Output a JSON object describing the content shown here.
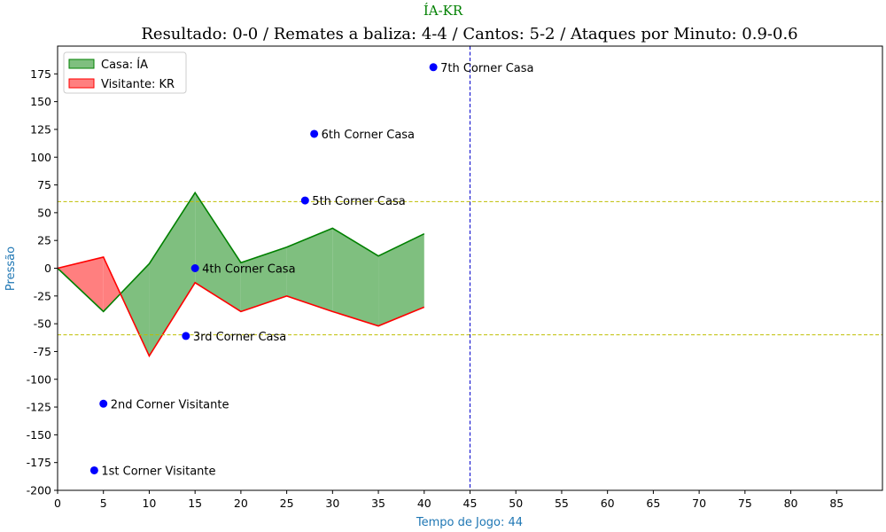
{
  "chart_data": {
    "type": "area",
    "suptitle": "ÍA-KR",
    "title": "Resultado: 0-0 / Remates a baliza: 4-4 / Cantos: 5-2 / Ataques por Minuto: 0.9-0.6",
    "xlabel": "Tempo de Jogo: 44",
    "ylabel": "Pressão",
    "xlim": [
      0,
      90
    ],
    "ylim": [
      -200,
      200
    ],
    "xticks": [
      0,
      5,
      10,
      15,
      20,
      25,
      30,
      35,
      40,
      45,
      50,
      55,
      60,
      65,
      70,
      75,
      80,
      85
    ],
    "yticks": [
      -200,
      -175,
      -150,
      -125,
      -100,
      -75,
      -50,
      -25,
      0,
      25,
      50,
      75,
      100,
      125,
      150,
      175
    ],
    "grid": false,
    "legend_position": "top-left",
    "x": [
      0,
      5,
      10,
      15,
      20,
      25,
      30,
      35,
      40
    ],
    "series": [
      {
        "name": "Casa: ÍA",
        "color": "#008000",
        "fill": "#7fbf7f",
        "values": [
          0,
          -39,
          4,
          68,
          5,
          19,
          36,
          11,
          31
        ]
      },
      {
        "name": "Visitante: KR",
        "color": "#ff0000",
        "fill": "#ff7f7f",
        "values": [
          0,
          10,
          -79,
          -13,
          -39,
          -25,
          -39,
          -52,
          -35
        ]
      }
    ],
    "hlines": [
      {
        "y": 60,
        "color": "#bfbf00",
        "style": "dashed"
      },
      {
        "y": -60,
        "color": "#bfbf00",
        "style": "dashed"
      }
    ],
    "vlines": [
      {
        "x": 45,
        "color": "#0000cc",
        "style": "dashed"
      }
    ],
    "annotations": [
      {
        "x": 4,
        "y": -182,
        "label": "1st Corner Visitante"
      },
      {
        "x": 5,
        "y": -122,
        "label": "2nd Corner Visitante"
      },
      {
        "x": 14,
        "y": -61,
        "label": "3rd Corner Casa"
      },
      {
        "x": 15,
        "y": 0,
        "label": "4th Corner Casa"
      },
      {
        "x": 27,
        "y": 61,
        "label": "5th Corner Casa"
      },
      {
        "x": 28,
        "y": 121,
        "label": "6th Corner Casa"
      },
      {
        "x": 41,
        "y": 181,
        "label": "7th Corner Casa"
      }
    ],
    "marker_color": "#0000ff"
  }
}
